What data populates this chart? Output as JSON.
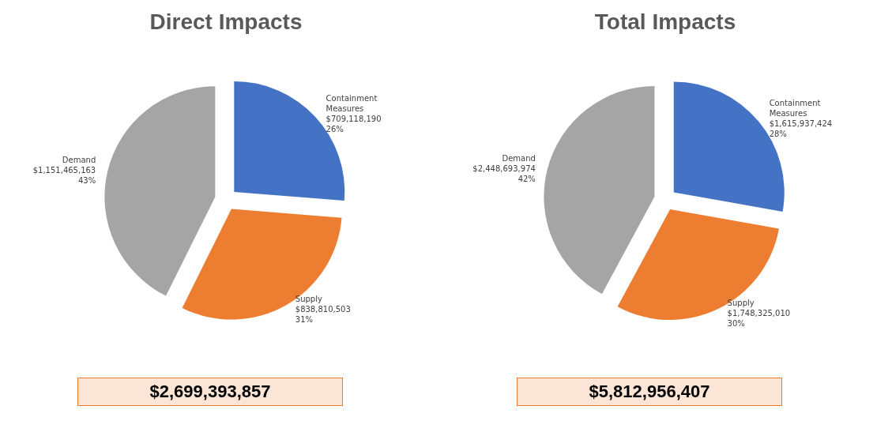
{
  "chart_data": [
    {
      "type": "pie",
      "title": "Direct Impacts",
      "categories": [
        "Containment Measures",
        "Supply",
        "Demand"
      ],
      "values": [
        709118190,
        838810503,
        1151465163
      ],
      "colors": [
        "#4472c4",
        "#ed7d31",
        "#a5a5a5"
      ],
      "value_labels": [
        "$709,118,190\n26%",
        "$838,810,503\n31%",
        "$1,151,465,163\n43%"
      ],
      "annotations": [
        "$2,699,393,857"
      ]
    },
    {
      "type": "pie",
      "title": "Total Impacts",
      "categories": [
        "Containment Measures",
        "Supply",
        "Demand"
      ],
      "values": [
        1615937424,
        1748325010,
        2448693974
      ],
      "colors": [
        "#4472c4",
        "#ed7d31",
        "#a5a5a5"
      ],
      "value_labels": [
        "$1,615,937,424\n28%",
        "$1,748,325,010\n30%",
        "$2,448,693,974\n42%"
      ],
      "annotations": [
        "$5,812,956,407"
      ]
    }
  ]
}
